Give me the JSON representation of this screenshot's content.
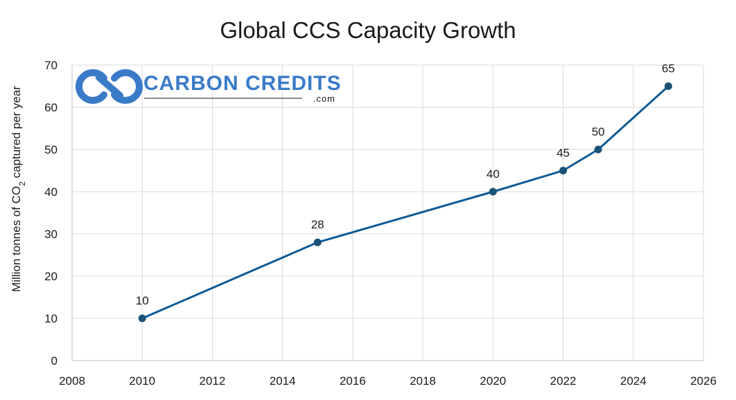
{
  "chart_data": {
    "type": "scatter",
    "mode": "lines+markers",
    "title": "Global CCS Capacity Growth",
    "xlabel": "",
    "ylabel_prefix": "Million tonnes of CO",
    "ylabel_subscript": "2",
    "ylabel_suffix": " captured per year",
    "xlim": [
      2008,
      2026
    ],
    "ylim": [
      0,
      70
    ],
    "xticks": [
      2008,
      2010,
      2012,
      2014,
      2016,
      2018,
      2020,
      2022,
      2024,
      2026
    ],
    "yticks": [
      0,
      10,
      20,
      30,
      40,
      50,
      60,
      70
    ],
    "grid": true,
    "series": [
      {
        "color": "#0d5a96",
        "marker_color": "#1a5276",
        "x": [
          2010,
          2015,
          2020,
          2022,
          2023,
          2025
        ],
        "y": [
          10,
          28,
          40,
          45,
          50,
          65
        ],
        "data_labels": [
          "10",
          "28",
          "40",
          "45",
          "50",
          "65"
        ]
      }
    ]
  },
  "logo": {
    "name": "CARBON CREDITS",
    "domain": ".com",
    "color": "#3a7bc8",
    "icon": "carbon-credits-logo-icon"
  }
}
